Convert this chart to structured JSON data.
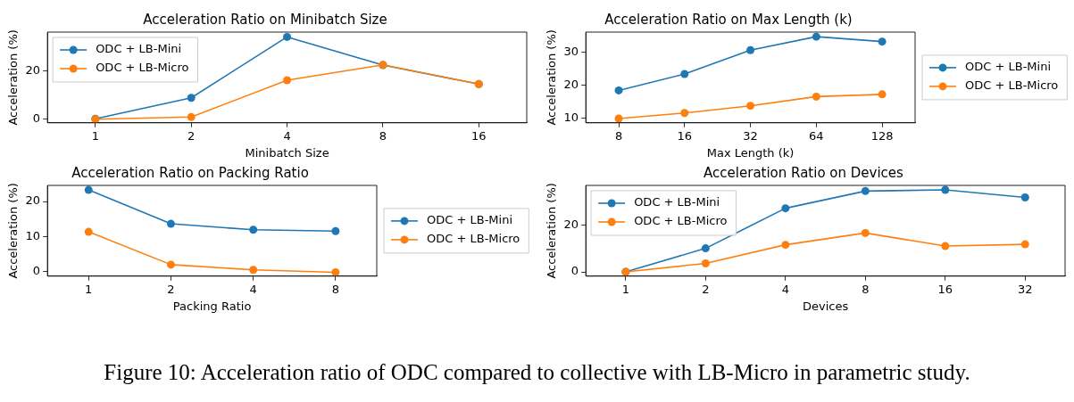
{
  "chart_data": [
    {
      "type": "line",
      "title": "Acceleration Ratio on Minibatch Size",
      "xlabel": "Minibatch Size",
      "ylabel": "Acceleration (%)",
      "categories": [
        "1",
        "2",
        "4",
        "8",
        "16"
      ],
      "ylim": [
        -1.7,
        36
      ],
      "yticks": [
        0,
        20
      ],
      "legend": "top left",
      "marker": "circle",
      "series": [
        {
          "name": "ODC + LB-Mini",
          "color": "#1f77b4",
          "values": [
            0,
            8.7,
            34,
            22.3,
            14.4
          ]
        },
        {
          "name": "ODC + LB-Micro",
          "color": "#ff7f0e",
          "values": [
            -0.2,
            0.7,
            16,
            22.4,
            14.4
          ]
        }
      ]
    },
    {
      "type": "line",
      "title": "Acceleration Ratio on Max Length (k)",
      "xlabel": "Max Length (k)",
      "ylabel": "Acceleration (%)",
      "categories": [
        "8",
        "16",
        "32",
        "64",
        "128"
      ],
      "ylim": [
        8.5,
        36.2
      ],
      "yticks": [
        10,
        20,
        30
      ],
      "legend": "right",
      "marker": "circle",
      "series": [
        {
          "name": "ODC + LB-Mini",
          "color": "#1f77b4",
          "values": [
            18.4,
            23.4,
            30.7,
            34.8,
            33.3
          ]
        },
        {
          "name": "ODC + LB-Micro",
          "color": "#ff7f0e",
          "values": [
            9.8,
            11.5,
            13.7,
            16.5,
            17.2
          ]
        }
      ]
    },
    {
      "type": "line",
      "title": "Acceleration Ratio on Packing Ratio",
      "xlabel": "Packing Ratio",
      "ylabel": "Acceleration (%)",
      "categories": [
        "1",
        "2",
        "4",
        "8"
      ],
      "ylim": [
        -1.4,
        24.6
      ],
      "yticks": [
        0,
        10,
        20
      ],
      "legend": "right",
      "marker": "circle",
      "series": [
        {
          "name": "ODC + LB-Mini",
          "color": "#1f77b4",
          "values": [
            23.3,
            13.6,
            11.9,
            11.5
          ]
        },
        {
          "name": "ODC + LB-Micro",
          "color": "#ff7f0e",
          "values": [
            11.3,
            1.9,
            0.4,
            -0.3
          ]
        }
      ]
    },
    {
      "type": "line",
      "title": "Acceleration Ratio on Devices",
      "xlabel": "Devices",
      "ylabel": "Acceleration (%)",
      "categories": [
        "1",
        "2",
        "4",
        "8",
        "16",
        "32"
      ],
      "ylim": [
        -1.8,
        36.7
      ],
      "yticks": [
        0,
        20
      ],
      "legend": "top left",
      "marker": "circle",
      "annotations": [
        "Figure 10: Acceleration ratio of ODC compared to collective with LB-Micro in parametric study."
      ],
      "series": [
        {
          "name": "ODC + LB-Mini",
          "color": "#1f77b4",
          "values": [
            0,
            10,
            27,
            34.3,
            34.8,
            31.6
          ]
        },
        {
          "name": "ODC + LB-Micro",
          "color": "#ff7f0e",
          "values": [
            0,
            3.6,
            11.5,
            16.5,
            11,
            11.7
          ]
        }
      ]
    }
  ]
}
